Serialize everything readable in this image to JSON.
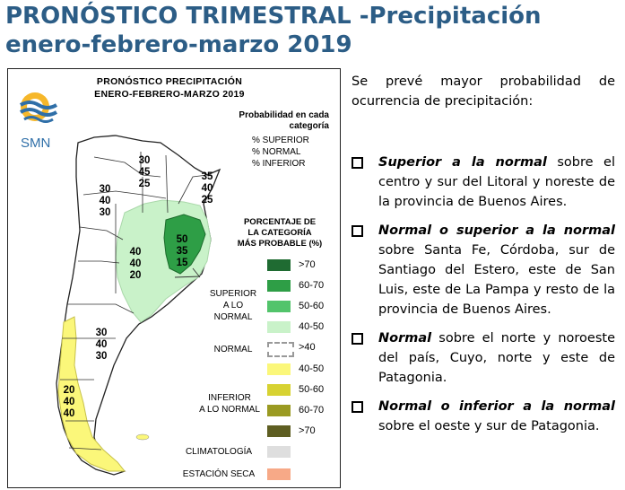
{
  "header": {
    "title_line1": "PRONÓSTICO TRIMESTRAL -Precipitación",
    "title_line2": "enero-febrero-marzo 2019"
  },
  "map_panel": {
    "title_line1": "PRONÓSTICO PRECIPITACIÓN",
    "title_line2": "ENERO-FEBRERO-MARZO 2019",
    "logo_text": "SMN",
    "probability_heading_line1": "Probabilidad en cada",
    "probability_heading_line2": "categoría",
    "probability_lines": [
      "% SUPERIOR",
      "% NORMAL",
      "% INFERIOR"
    ],
    "category_heading_line1": "PORCENTAJE DE",
    "category_heading_line2": "LA CATEGORÍA",
    "category_heading_line3": "MÁS PROBABLE (%)",
    "legend_categories": {
      "superior_line1": "SUPERIOR",
      "superior_line2": "A LO NORMAL",
      "normal": "NORMAL",
      "inferior_line1": "INFERIOR",
      "inferior_line2": "A LO NORMAL",
      "climatologia": "CLIMATOLOGÍA",
      "estacion_seca": "ESTACIÓN SECA"
    },
    "legend_items": [
      {
        "label": ">70",
        "color": "#1f6b32"
      },
      {
        "label": "60-70",
        "color": "#2e9e46"
      },
      {
        "label": "50-60",
        "color": "#52c46b"
      },
      {
        "label": "40-50",
        "color": "#c9f2c9"
      },
      {
        "label": ">40",
        "color": "#ffffff"
      },
      {
        "label": "40-50",
        "color": "#fbf77a"
      },
      {
        "label": "50-60",
        "color": "#d7d232"
      },
      {
        "label": "60-70",
        "color": "#9a9a22"
      },
      {
        "label": ">70",
        "color": "#5e5e22"
      },
      {
        "label": "",
        "color": "#dedede"
      },
      {
        "label": "",
        "color": "#f7a987"
      }
    ],
    "map_numbers": {
      "north_top": [
        "30",
        "45",
        "25"
      ],
      "northeast": [
        "35",
        "40",
        "25"
      ],
      "northwest": [
        "30",
        "40",
        "30"
      ],
      "center": [
        "40",
        "40",
        "20"
      ],
      "littoral": [
        "50",
        "35",
        "15"
      ],
      "patagonia_north": [
        "30",
        "40",
        "30"
      ],
      "patagonia_south": [
        "20",
        "40",
        "40"
      ]
    }
  },
  "text": {
    "intro": "Se prevé mayor probabilidad de ocurrencia de precipitación:",
    "bullets": [
      {
        "bold": "Superior a la normal",
        "rest": " sobre el centro y sur del Litoral y noreste de la provincia de Buenos Aires."
      },
      {
        "bold": "Normal o superior a la normal",
        "rest": " sobre Santa Fe, Córdoba, sur de Santiago del Estero, este de San Luis, este de La Pampa y resto de la provincia de Buenos Aires."
      },
      {
        "bold": "Normal",
        "rest": " sobre el norte y noroeste del país, Cuyo, norte y este de Patagonia."
      },
      {
        "bold": "Normal o inferior a la normal",
        "rest": " sobre el oeste y sur de Patagonia."
      }
    ]
  }
}
